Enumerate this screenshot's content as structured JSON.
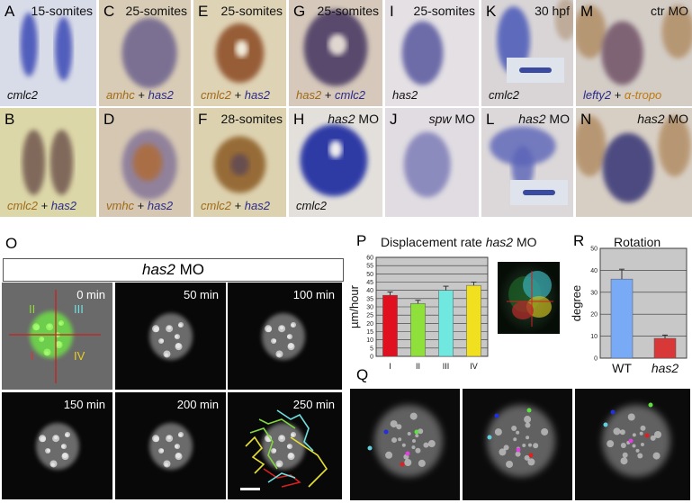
{
  "top_panels": [
    {
      "letter": "A",
      "stage": "15-somites",
      "caption": [
        {
          "t": "cmlc2",
          "c": "#111"
        }
      ]
    },
    {
      "letter": "B",
      "stage": "",
      "caption": [
        {
          "t": "cmlc2",
          "c": "#a06a18"
        },
        {
          "t": " + ",
          "c": "#111",
          "plain": true
        },
        {
          "t": "has2",
          "c": "#2a2a8a"
        }
      ]
    },
    {
      "letter": "C",
      "stage": "25-somites",
      "caption": [
        {
          "t": "amhc",
          "c": "#a06a18"
        },
        {
          "t": " + ",
          "c": "#111",
          "plain": true
        },
        {
          "t": "has2",
          "c": "#2a2a8a"
        }
      ]
    },
    {
      "letter": "D",
      "stage": "",
      "caption": [
        {
          "t": "vmhc",
          "c": "#a06a18"
        },
        {
          "t": " + ",
          "c": "#111",
          "plain": true
        },
        {
          "t": "has2",
          "c": "#2a2a8a"
        }
      ]
    },
    {
      "letter": "E",
      "stage": "25-somites",
      "caption": [
        {
          "t": "cmlc2",
          "c": "#a06a18"
        },
        {
          "t": " + ",
          "c": "#111",
          "plain": true
        },
        {
          "t": "has2",
          "c": "#2a2a8a"
        }
      ]
    },
    {
      "letter": "F",
      "stage": "28-somites",
      "caption": [
        {
          "t": "cmlc2",
          "c": "#a06a18"
        },
        {
          "t": " + ",
          "c": "#111",
          "plain": true
        },
        {
          "t": "has2",
          "c": "#2a2a8a"
        }
      ]
    },
    {
      "letter": "G",
      "stage": "25-somites",
      "caption": [
        {
          "t": "has2",
          "c": "#a06a18"
        },
        {
          "t": " + ",
          "c": "#111",
          "plain": true
        },
        {
          "t": "cmlc2",
          "c": "#2a2a8a"
        }
      ]
    },
    {
      "letter": "H",
      "stage": "has2 MO",
      "caption": [
        {
          "t": "cmlc2",
          "c": "#111"
        }
      ]
    },
    {
      "letter": "I",
      "stage": "25-somites",
      "caption": [
        {
          "t": "has2",
          "c": "#111"
        }
      ]
    },
    {
      "letter": "J",
      "stage": "spw MO",
      "caption": []
    },
    {
      "letter": "K",
      "stage": "30 hpf",
      "caption": [
        {
          "t": "cmlc2",
          "c": "#111"
        }
      ]
    },
    {
      "letter": "L",
      "stage": "has2 MO",
      "caption": []
    },
    {
      "letter": "M",
      "stage": "ctr MO",
      "caption": [
        {
          "t": "lefty2",
          "c": "#2a2a8a"
        },
        {
          "t": " + ",
          "c": "#111",
          "plain": true
        },
        {
          "t": "α-tropo",
          "c": "#c07a10"
        }
      ]
    },
    {
      "letter": "N",
      "stage": "has2 MO",
      "caption": []
    }
  ],
  "panel_o": {
    "letter": "O",
    "title_italic": "has2",
    "title_rest": " MO",
    "time_labels": [
      "0 min",
      "50 min",
      "100 min",
      "150 min",
      "200 min",
      "250 min"
    ],
    "quadrants": [
      {
        "label": "I",
        "color": "#e03030"
      },
      {
        "label": "II",
        "color": "#8adb3a"
      },
      {
        "label": "III",
        "color": "#6fe0e0"
      },
      {
        "label": "IV",
        "color": "#e8d020"
      }
    ]
  },
  "panel_q": {
    "letter": "Q"
  },
  "chart_data": [
    {
      "type": "bar",
      "letter": "P",
      "title": "Displacement rate has2 MO",
      "title_parts": {
        "plain": "Displacement rate ",
        "italic": "has2",
        "plain2": " MO"
      },
      "ylabel": "µm/hour",
      "categories": [
        "I",
        "II",
        "III",
        "IV"
      ],
      "values": [
        37,
        32,
        40,
        43
      ],
      "errors": [
        2,
        2,
        2.5,
        2
      ],
      "colors": [
        "#e01020",
        "#8fe03a",
        "#70e8e0",
        "#f0e020"
      ],
      "ylim": [
        0,
        60
      ],
      "yticks": [
        0,
        5,
        10,
        15,
        20,
        25,
        30,
        35,
        40,
        45,
        50,
        55,
        60
      ],
      "grid": true
    },
    {
      "type": "bar",
      "letter": "R",
      "title": "Rotation",
      "ylabel": "degree",
      "categories": [
        "WT",
        "has2"
      ],
      "values": [
        36,
        9
      ],
      "errors": [
        4.5,
        1.5
      ],
      "colors": [
        "#79aaf5",
        "#d83838"
      ],
      "ylim": [
        0,
        50
      ],
      "yticks": [
        0,
        10,
        20,
        30,
        40,
        50
      ],
      "grid": true
    }
  ]
}
